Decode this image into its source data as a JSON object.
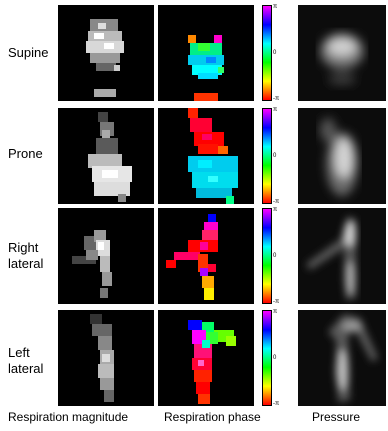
{
  "rows": [
    {
      "label": "Supine"
    },
    {
      "label": "Prone"
    },
    {
      "label": "Right\nlateral"
    },
    {
      "label": "Left\nlateral"
    }
  ],
  "columns": [
    {
      "label": "Respiration magnitude"
    },
    {
      "label": "Respiration phase"
    },
    {
      "label": "Pressure"
    }
  ],
  "colorbar": {
    "top_label": "π",
    "middle_label": "0",
    "bottom_label": "-π",
    "colors": [
      "#ff00ff",
      "#0000ff",
      "#00ffff",
      "#00ff00",
      "#ffff00",
      "#ff0000"
    ]
  },
  "colors": {
    "background": "#000000",
    "text": "#000000"
  }
}
